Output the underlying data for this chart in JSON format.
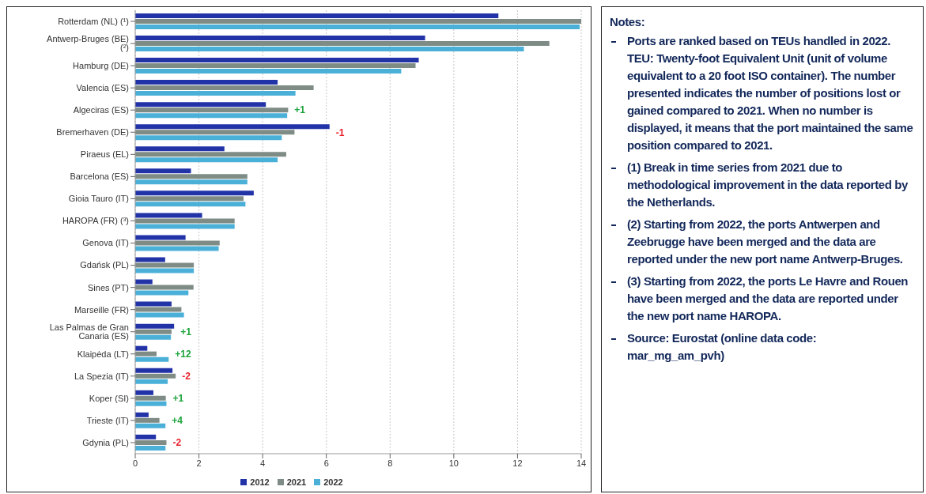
{
  "chart_data": [
    {
      "type": "bar",
      "orientation": "horizontal",
      "categories": [
        "Rotterdam (NL) (¹)",
        "Antwerp-Bruges (BE) (²)",
        "Hamburg (DE)",
        "Valencia (ES)",
        "Algeciras (ES)",
        "Bremerhaven (DE)",
        "Piraeus (EL)",
        "Barcelona (ES)",
        "Gioia Tauro (IT)",
        "HAROPA (FR) (³)",
        "Genova (IT)",
        "Gdańsk (PL)",
        "Sines (PT)",
        "Marseille (FR)",
        "Las Palmas de Gran Canaria (ES)",
        "Klaipėda (LT)",
        "La Spezia (IT)",
        "Koper (SI)",
        "Trieste (IT)",
        "Gdynia (PL)"
      ],
      "series": [
        {
          "name": "2012",
          "color": "#2233a8",
          "values": [
            11.4,
            9.1,
            8.9,
            4.47,
            4.1,
            6.1,
            2.8,
            1.75,
            3.72,
            2.1,
            1.58,
            0.94,
            0.54,
            1.14,
            1.22,
            0.38,
            1.17,
            0.57,
            0.42,
            0.65
          ]
        },
        {
          "name": "2021",
          "color": "#7f8c86",
          "values": [
            14.0,
            13.0,
            8.8,
            5.6,
            4.8,
            5.0,
            4.74,
            3.52,
            3.4,
            3.12,
            2.65,
            1.84,
            1.83,
            1.45,
            1.14,
            0.67,
            1.27,
            0.96,
            0.76,
            0.98
          ]
        },
        {
          "name": "2022",
          "color": "#4bb0d8",
          "values": [
            13.95,
            12.2,
            8.35,
            5.03,
            4.77,
            4.6,
            4.47,
            3.52,
            3.46,
            3.12,
            2.62,
            1.84,
            1.67,
            1.53,
            1.12,
            1.05,
            1.02,
            0.98,
            0.95,
            0.95
          ]
        }
      ],
      "xlim": [
        0,
        14
      ],
      "xticks": [
        0,
        2,
        4,
        6,
        8,
        10,
        12,
        14
      ],
      "grid": "x",
      "legend": "bottom",
      "annotations": [
        {
          "text": "+1",
          "x": 4.8,
          "y": "Algeciras (ES)"
        },
        {
          "text": "-1",
          "x": 6.1,
          "y": "Bremerhaven (DE)"
        },
        {
          "text": "+1",
          "x": 1.22,
          "y": "Las Palmas de Gran Canaria (ES)"
        },
        {
          "text": "+12",
          "x": 1.05,
          "y": "Klaipėda (LT)"
        },
        {
          "text": "-2",
          "x": 1.27,
          "y": "La Spezia (IT)"
        },
        {
          "text": "+1",
          "x": 0.98,
          "y": "Koper (SI)"
        },
        {
          "text": "+4",
          "x": 0.95,
          "y": "Trieste (IT)"
        },
        {
          "text": "-2",
          "x": 0.98,
          "y": "Gdynia (PL)"
        }
      ]
    },
    {
      "type": "other",
      "title": "Notes:",
      "annotations": [
        "Ports are ranked based on TEUs handled in 2022. TEU: Twenty-foot Equivalent Unit (unit of volume equivalent to a 20 foot ISO container). The number presented indicates the number of positions lost or gained compared to 2021. When no number is displayed, it means that the port maintained the same position compared to 2021.",
        "(1) Break in time series from 2021 due to methodological improvement in the data reported by the Netherlands.",
        "(2) Starting from 2022, the ports Antwerpen and Zeebrugge have been merged and the data are reported under the new port name Antwerp-Bruges.",
        "(3) Starting from 2022, the ports Le Havre and Rouen have been merged and the data are reported under the new port name HAROPA.",
        "Source: Eurostat (online data code: mar_mg_am_pvh)"
      ]
    }
  ]
}
